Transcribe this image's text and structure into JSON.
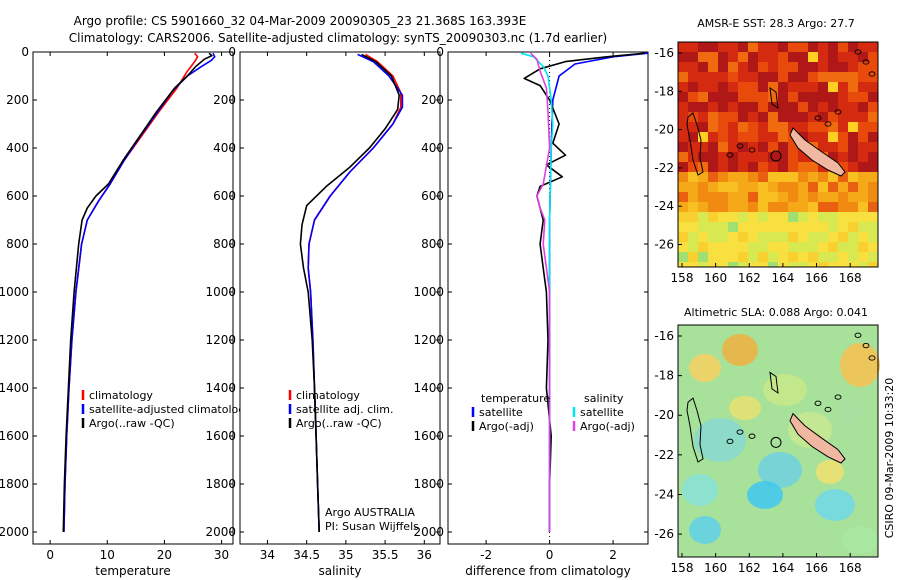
{
  "header": {
    "line1": "Argo profile: CS 5901660_32 04-Mar-2009 20090305_23 21.368S 163.393E",
    "line2": "Climatology: CARS2006. Satellite-adjusted climatology: synTS_20090303.nc (1.7d earlier)"
  },
  "colors": {
    "climatology": "#ff0000",
    "satellite": "#0000ff",
    "argo": "#000000",
    "sat_diff": "#00e5ee",
    "argo_adj": "#e040e0",
    "land": "#f0b8a0"
  },
  "chart_data": [
    {
      "id": "temperature",
      "type": "line",
      "xlabel": "temperature",
      "ylabel": "",
      "xlim": [
        -3,
        32
      ],
      "ylim": [
        2050,
        0
      ],
      "xticks": [
        0,
        10,
        20,
        30
      ],
      "yticks": [
        0,
        200,
        400,
        600,
        800,
        1000,
        1200,
        1400,
        1600,
        1800,
        2000
      ],
      "legend": [
        "climatology",
        "satellite-adjusted climatology",
        "Argo(..raw -QC)"
      ],
      "series": [
        {
          "name": "climatology",
          "color": "#ff0000",
          "points": [
            [
              25.3,
              5
            ],
            [
              25.8,
              20
            ],
            [
              25.3,
              40
            ],
            [
              24,
              80
            ],
            [
              22.2,
              150
            ],
            [
              19,
              250
            ],
            [
              16,
              350
            ],
            [
              13,
              450
            ],
            [
              10.5,
              550
            ],
            [
              8.5,
              620
            ],
            [
              6.5,
              700
            ],
            [
              5.5,
              800
            ],
            [
              4.5,
              1000
            ],
            [
              3.8,
              1200
            ],
            [
              3.3,
              1400
            ],
            [
              2.9,
              1600
            ],
            [
              2.6,
              1800
            ],
            [
              2.4,
              2000
            ]
          ]
        },
        {
          "name": "satellite-adjusted climatology",
          "color": "#0000ff",
          "points": [
            [
              28.5,
              5
            ],
            [
              28.8,
              20
            ],
            [
              28.2,
              35
            ],
            [
              26.5,
              60
            ],
            [
              24,
              100
            ],
            [
              21.5,
              160
            ],
            [
              18.8,
              250
            ],
            [
              15.8,
              350
            ],
            [
              13,
              450
            ],
            [
              10.5,
              550
            ],
            [
              8.5,
              620
            ],
            [
              6.5,
              700
            ],
            [
              5.5,
              800
            ],
            [
              4.5,
              1000
            ],
            [
              3.8,
              1200
            ],
            [
              3.3,
              1400
            ],
            [
              2.9,
              1600
            ],
            [
              2.6,
              1800
            ],
            [
              2.4,
              2000
            ]
          ]
        },
        {
          "name": "Argo(..raw -QC)",
          "color": "#000000",
          "points": [
            [
              27.8,
              5
            ],
            [
              28.3,
              15
            ],
            [
              27,
              30
            ],
            [
              25.5,
              60
            ],
            [
              24,
              100
            ],
            [
              21.8,
              150
            ],
            [
              18.6,
              250
            ],
            [
              15.7,
              350
            ],
            [
              12.8,
              450
            ],
            [
              10.2,
              550
            ],
            [
              8,
              600
            ],
            [
              6.5,
              650
            ],
            [
              5.6,
              700
            ],
            [
              5,
              800
            ],
            [
              4.2,
              1000
            ],
            [
              3.6,
              1200
            ],
            [
              3.2,
              1400
            ],
            [
              2.8,
              1600
            ],
            [
              2.5,
              1800
            ],
            [
              2.3,
              2000
            ]
          ]
        }
      ]
    },
    {
      "id": "salinity",
      "type": "line",
      "xlabel": "salinity",
      "ylabel": "",
      "xlim": [
        33.65,
        36.2
      ],
      "ylim": [
        2050,
        0
      ],
      "xticks": [
        34,
        34.5,
        35,
        35.5,
        36
      ],
      "yticks": [
        0,
        200,
        400,
        600,
        800,
        1000,
        1200,
        1400,
        1600,
        1800,
        2000
      ],
      "legend": [
        "climatology",
        "satellite adj. clim.",
        "Argo(..raw -QC)"
      ],
      "annotation": [
        "Argo AUSTRALIA",
        "PI: Susan Wijffels"
      ],
      "series": [
        {
          "name": "climatology",
          "color": "#ff0000",
          "points": [
            [
              35.25,
              10
            ],
            [
              35.4,
              40
            ],
            [
              35.6,
              100
            ],
            [
              35.7,
              170
            ],
            [
              35.7,
              230
            ],
            [
              35.6,
              300
            ],
            [
              35.35,
              400
            ],
            [
              35.05,
              500
            ],
            [
              34.8,
              600
            ],
            [
              34.6,
              700
            ],
            [
              34.53,
              800
            ],
            [
              34.52,
              900
            ],
            [
              34.55,
              1000
            ],
            [
              34.58,
              1200
            ],
            [
              34.6,
              1400
            ],
            [
              34.62,
              1600
            ],
            [
              34.64,
              1800
            ],
            [
              34.66,
              2000
            ]
          ]
        },
        {
          "name": "satellite adj. clim.",
          "color": "#0000ff",
          "points": [
            [
              35.15,
              10
            ],
            [
              35.35,
              40
            ],
            [
              35.55,
              100
            ],
            [
              35.72,
              180
            ],
            [
              35.72,
              230
            ],
            [
              35.6,
              300
            ],
            [
              35.35,
              400
            ],
            [
              35.05,
              500
            ],
            [
              34.8,
              600
            ],
            [
              34.6,
              700
            ],
            [
              34.53,
              800
            ],
            [
              34.52,
              900
            ],
            [
              34.55,
              1000
            ],
            [
              34.58,
              1200
            ],
            [
              34.6,
              1400
            ],
            [
              34.62,
              1600
            ],
            [
              34.64,
              1800
            ],
            [
              34.66,
              2000
            ]
          ]
        },
        {
          "name": "Argo(..raw -QC)",
          "color": "#000000",
          "points": [
            [
              35.2,
              10
            ],
            [
              35.38,
              40
            ],
            [
              35.58,
              100
            ],
            [
              35.68,
              180
            ],
            [
              35.66,
              240
            ],
            [
              35.5,
              320
            ],
            [
              35.3,
              400
            ],
            [
              35.05,
              480
            ],
            [
              34.75,
              560
            ],
            [
              34.5,
              640
            ],
            [
              34.44,
              720
            ],
            [
              34.42,
              800
            ],
            [
              34.46,
              900
            ],
            [
              34.52,
              1000
            ],
            [
              34.57,
              1200
            ],
            [
              34.6,
              1400
            ],
            [
              34.62,
              1600
            ],
            [
              34.64,
              1800
            ],
            [
              34.66,
              2000
            ]
          ]
        }
      ]
    },
    {
      "id": "difference",
      "type": "line",
      "xlabel": "difference from climatology",
      "ylabel": "",
      "xlim": [
        -3.2,
        3.1
      ],
      "ylim": [
        2050,
        0
      ],
      "xticks": [
        -2,
        0,
        2
      ],
      "yticks": [
        0,
        200,
        400,
        600,
        800,
        1000,
        1200,
        1400,
        1600,
        1800,
        2000
      ],
      "legend_left": [
        "temperature",
        "satellite",
        "Argo(-adj)"
      ],
      "legend_right": [
        "salinity",
        "satellite",
        "Argo(-adj)"
      ],
      "series": [
        {
          "name": "temperature satellite",
          "color": "#0000ff",
          "points": [
            [
              3.1,
              5
            ],
            [
              2,
              20
            ],
            [
              0.8,
              50
            ],
            [
              0.3,
              100
            ],
            [
              0.1,
              200
            ],
            [
              0.05,
              400
            ],
            [
              0,
              700
            ],
            [
              0,
              2000
            ]
          ]
        },
        {
          "name": "temperature Argo(-adj)",
          "color": "#000000",
          "points": [
            [
              3,
              5
            ],
            [
              1.8,
              20
            ],
            [
              0.5,
              40
            ],
            [
              -0.3,
              70
            ],
            [
              -0.8,
              110
            ],
            [
              -0.3,
              140
            ],
            [
              0,
              200
            ],
            [
              0.3,
              300
            ],
            [
              0.1,
              380
            ],
            [
              0.5,
              430
            ],
            [
              -0.1,
              470
            ],
            [
              0.4,
              520
            ],
            [
              -0.3,
              560
            ],
            [
              -0.4,
              600
            ],
            [
              -0.2,
              700
            ],
            [
              -0.3,
              800
            ],
            [
              -0.2,
              900
            ],
            [
              -0.1,
              1000
            ],
            [
              -0.05,
              1200
            ],
            [
              -0.1,
              1400
            ],
            [
              0.05,
              1600
            ],
            [
              0,
              1800
            ],
            [
              0,
              2000
            ]
          ]
        },
        {
          "name": "salinity satellite",
          "color": "#00e5ee",
          "points": [
            [
              -0.9,
              5
            ],
            [
              -0.5,
              20
            ],
            [
              -0.2,
              60
            ],
            [
              -0.05,
              100
            ],
            [
              0.05,
              200
            ],
            [
              0.1,
              300
            ],
            [
              0.05,
              400
            ],
            [
              0,
              700
            ],
            [
              0,
              2000
            ]
          ]
        },
        {
          "name": "salinity Argo(-adj)",
          "color": "#e040e0",
          "points": [
            [
              -0.6,
              5
            ],
            [
              -0.4,
              30
            ],
            [
              -0.3,
              80
            ],
            [
              -0.1,
              150
            ],
            [
              -0.05,
              250
            ],
            [
              0,
              400
            ],
            [
              -0.2,
              550
            ],
            [
              -0.4,
              600
            ],
            [
              -0.3,
              650
            ],
            [
              -0.15,
              700
            ],
            [
              -0.2,
              800
            ],
            [
              -0.1,
              900
            ],
            [
              0,
              1000
            ],
            [
              0,
              2000
            ]
          ]
        }
      ]
    }
  ],
  "maps": [
    {
      "id": "sst",
      "title": "AMSR-E SST: 28.3 Argo: 27.7",
      "xticks": [
        "158",
        "160",
        "162",
        "164",
        "166",
        "168"
      ],
      "yticks": [
        "-16",
        "-18",
        "-20",
        "-22",
        "-24",
        "-26"
      ]
    },
    {
      "id": "sla",
      "title": "Altimetric SLA: 0.088 Argo: 0.041",
      "xticks": [
        "158",
        "160",
        "162",
        "164",
        "166",
        "168"
      ],
      "yticks": [
        "-16",
        "-18",
        "-20",
        "-22",
        "-24",
        "-26"
      ]
    }
  ],
  "side_label": "CSIRO 09-Mar-2009 10:33:20"
}
